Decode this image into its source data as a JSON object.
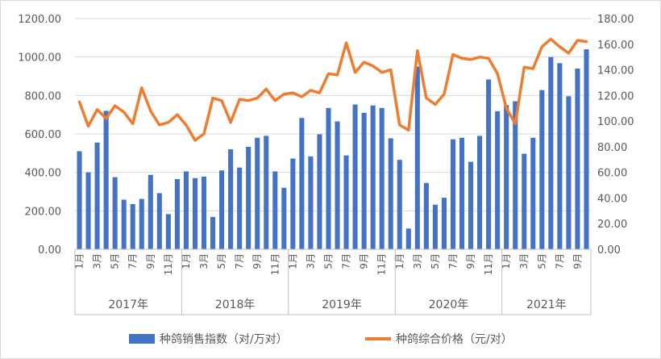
{
  "chart_data": {
    "type": "bar-line-combo",
    "title": "",
    "categories": [
      "2017-01",
      "2017-02",
      "2017-03",
      "2017-04",
      "2017-05",
      "2017-06",
      "2017-07",
      "2017-08",
      "2017-09",
      "2017-10",
      "2017-11",
      "2017-12",
      "2018-01",
      "2018-02",
      "2018-03",
      "2018-04",
      "2018-05",
      "2018-06",
      "2018-07",
      "2018-08",
      "2018-09",
      "2018-10",
      "2018-11",
      "2018-12",
      "2019-01",
      "2019-02",
      "2019-03",
      "2019-04",
      "2019-05",
      "2019-06",
      "2019-07",
      "2019-08",
      "2019-09",
      "2019-10",
      "2019-11",
      "2019-12",
      "2020-01",
      "2020-02",
      "2020-03",
      "2020-04",
      "2020-05",
      "2020-06",
      "2020-07",
      "2020-08",
      "2020-09",
      "2020-10",
      "2020-11",
      "2020-12",
      "2021-01",
      "2021-02",
      "2021-03",
      "2021-04",
      "2021-05",
      "2021-06",
      "2021-07",
      "2021-08",
      "2021-09",
      "2021-10"
    ],
    "month_labels": [
      "1月",
      "",
      "3月",
      "",
      "5月",
      "",
      "7月",
      "",
      "9月",
      "",
      "11月",
      ""
    ],
    "year_labels": [
      "2017年",
      "2018年",
      "2019年",
      "2020年",
      "2021年"
    ],
    "series": [
      {
        "name": "种鸽销售指数（对/万对）",
        "type": "bar",
        "axis": "left",
        "color": "#4472C4",
        "values": [
          510,
          400,
          555,
          720,
          375,
          258,
          235,
          262,
          387,
          292,
          183,
          365,
          405,
          370,
          378,
          168,
          410,
          520,
          425,
          533,
          580,
          590,
          405,
          320,
          472,
          683,
          483,
          598,
          735,
          665,
          488,
          753,
          710,
          748,
          735,
          577,
          465,
          108,
          950,
          345,
          232,
          268,
          572,
          580,
          455,
          590,
          883,
          718,
          750,
          770,
          497,
          580,
          828,
          1000,
          968,
          796,
          940,
          1040
        ]
      },
      {
        "name": "种鸽综合价格（元/对）",
        "type": "line",
        "axis": "right",
        "color": "#ED7D31",
        "values": [
          115,
          96,
          109,
          102,
          112,
          107,
          98,
          126,
          108,
          97,
          99,
          105,
          97,
          85,
          90,
          118,
          116,
          99,
          117,
          116,
          118,
          125,
          116,
          121,
          122,
          119,
          124,
          122,
          137,
          136,
          161,
          138,
          146,
          143,
          138,
          140,
          97,
          93,
          155,
          118,
          113,
          121,
          152,
          149,
          148,
          150,
          149,
          137,
          110,
          98,
          142,
          141,
          158,
          164,
          158,
          153,
          163,
          162
        ]
      }
    ],
    "y_left": {
      "min": 0,
      "max": 1200,
      "step": 200,
      "ticks": [
        "0.00",
        "200.00",
        "400.00",
        "600.00",
        "800.00",
        "1000.00",
        "1200.00"
      ]
    },
    "y_right": {
      "min": 0,
      "max": 180,
      "step": 20,
      "ticks": [
        "0.00",
        "20.00",
        "40.00",
        "60.00",
        "80.00",
        "100.00",
        "120.00",
        "140.00",
        "160.00",
        "180.00"
      ]
    },
    "grid": true,
    "legend_position": "bottom"
  }
}
